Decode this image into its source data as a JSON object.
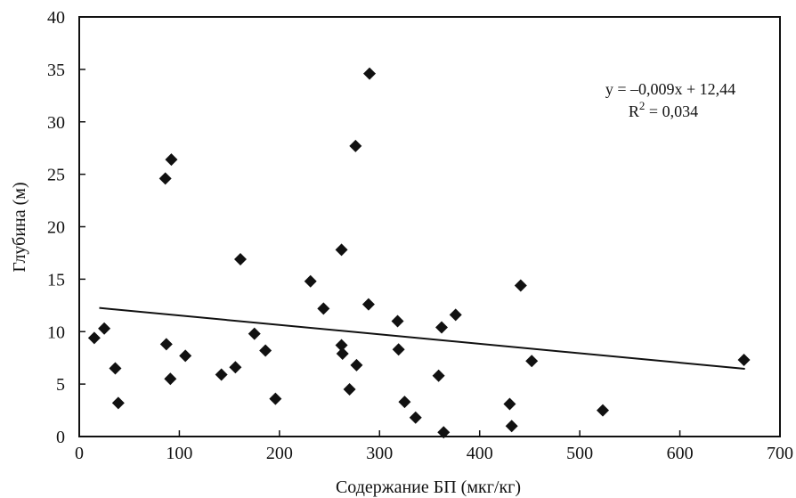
{
  "chart_data": {
    "type": "scatter",
    "title": "",
    "xlabel": "Содержание БП (мкг/кг)",
    "ylabel": "Глубина (м)",
    "xlim": [
      0,
      700
    ],
    "ylim": [
      0,
      40
    ],
    "xticks": [
      0,
      100,
      200,
      300,
      400,
      500,
      600,
      700
    ],
    "yticks": [
      0,
      5,
      10,
      15,
      20,
      25,
      30,
      35,
      40
    ],
    "grid": false,
    "legend": "none",
    "marker": "diamond",
    "marker_color": "#111111",
    "points": [
      {
        "x": 15,
        "y": 9.4
      },
      {
        "x": 25,
        "y": 10.3
      },
      {
        "x": 36,
        "y": 6.5
      },
      {
        "x": 39,
        "y": 3.2
      },
      {
        "x": 86,
        "y": 24.6
      },
      {
        "x": 87,
        "y": 8.8
      },
      {
        "x": 92,
        "y": 26.4
      },
      {
        "x": 91,
        "y": 5.5
      },
      {
        "x": 106,
        "y": 7.7
      },
      {
        "x": 142,
        "y": 5.9
      },
      {
        "x": 156,
        "y": 6.6
      },
      {
        "x": 161,
        "y": 16.9
      },
      {
        "x": 175,
        "y": 9.8
      },
      {
        "x": 186,
        "y": 8.2
      },
      {
        "x": 196,
        "y": 3.6
      },
      {
        "x": 231,
        "y": 14.8
      },
      {
        "x": 244,
        "y": 12.2
      },
      {
        "x": 262,
        "y": 17.8
      },
      {
        "x": 262,
        "y": 8.7
      },
      {
        "x": 263,
        "y": 7.9
      },
      {
        "x": 270,
        "y": 4.5
      },
      {
        "x": 276,
        "y": 27.7
      },
      {
        "x": 277,
        "y": 6.8
      },
      {
        "x": 290,
        "y": 34.6
      },
      {
        "x": 289,
        "y": 12.6
      },
      {
        "x": 318,
        "y": 11.0
      },
      {
        "x": 319,
        "y": 8.3
      },
      {
        "x": 325,
        "y": 3.3
      },
      {
        "x": 336,
        "y": 1.8
      },
      {
        "x": 359,
        "y": 5.8
      },
      {
        "x": 362,
        "y": 10.4
      },
      {
        "x": 364,
        "y": 0.4
      },
      {
        "x": 376,
        "y": 11.6
      },
      {
        "x": 430,
        "y": 3.1
      },
      {
        "x": 432,
        "y": 1.0
      },
      {
        "x": 441,
        "y": 14.4
      },
      {
        "x": 452,
        "y": 7.2
      },
      {
        "x": 523,
        "y": 2.5
      },
      {
        "x": 664,
        "y": 7.3
      }
    ],
    "trendline": {
      "x_start": 20,
      "x_end": 665
    },
    "equation_text": "y = –0,009x + 12,44",
    "r2_prefix": "R",
    "r2_exponent": "2",
    "r2_suffix": " = 0,034",
    "axis_color": "#111111"
  }
}
